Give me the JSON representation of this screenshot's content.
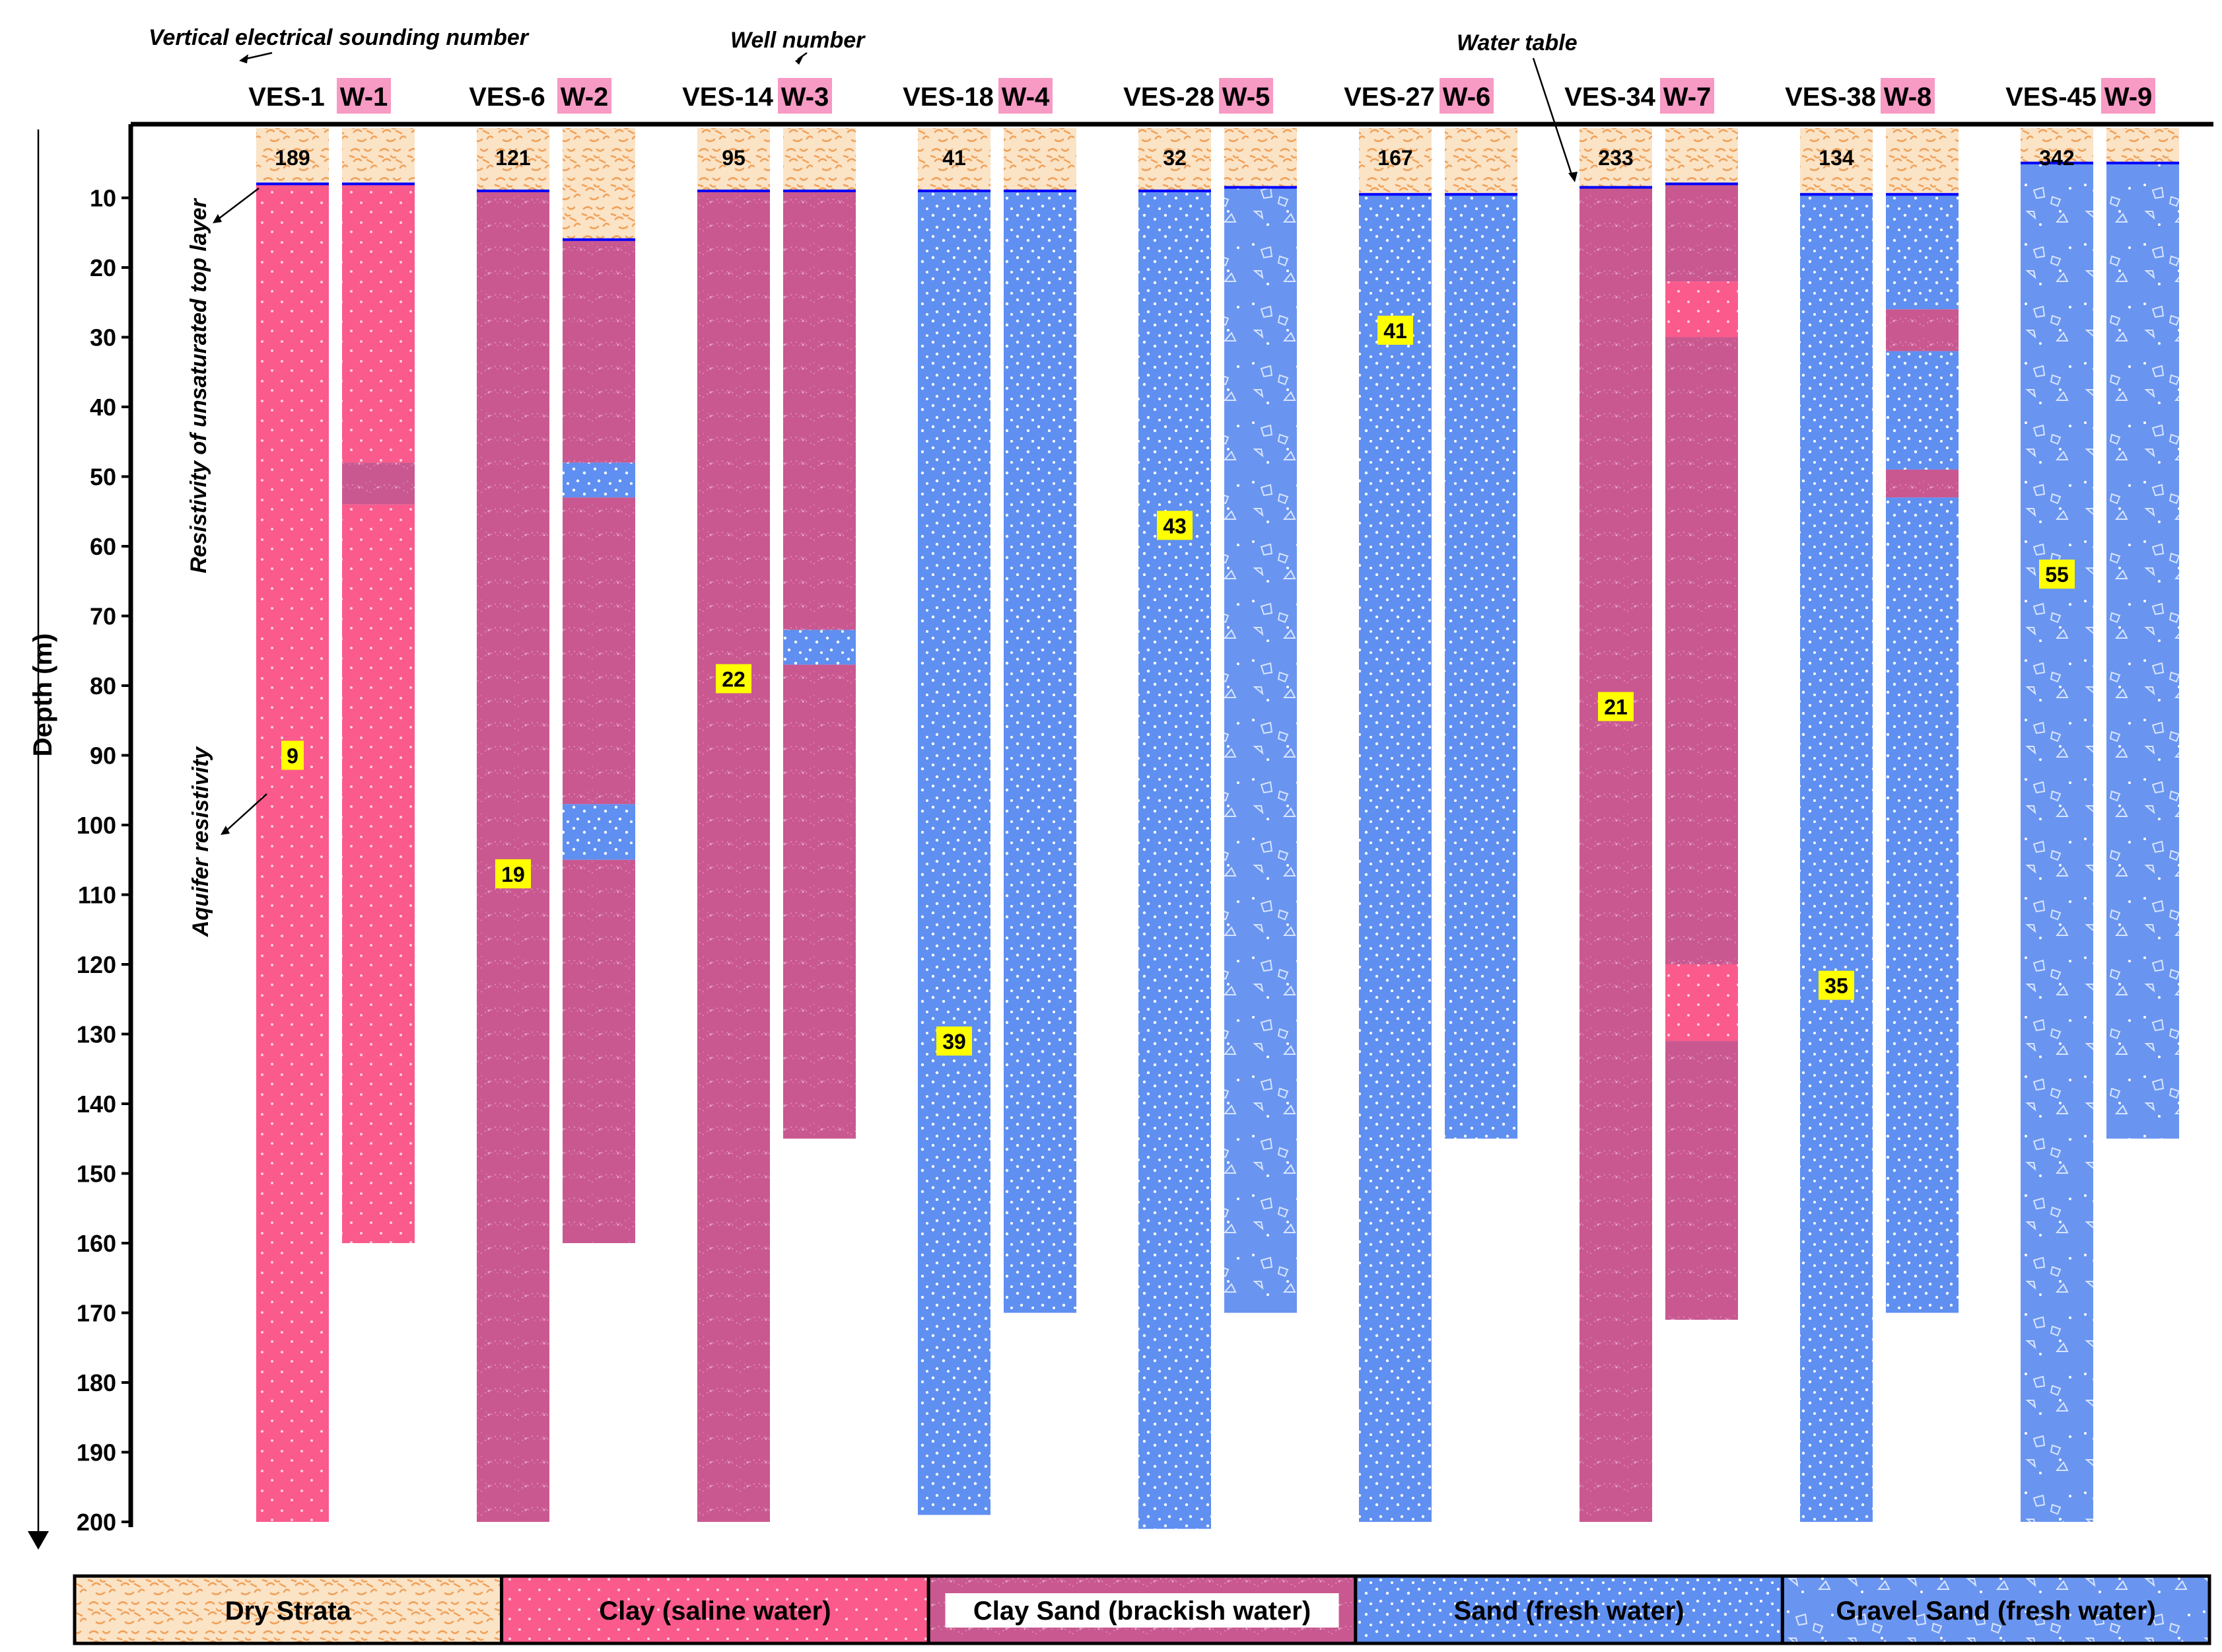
{
  "axis": {
    "ylabel": "Depth (m)",
    "ylim": [
      0,
      200
    ],
    "ticks": [
      10,
      20,
      30,
      40,
      50,
      60,
      70,
      80,
      90,
      100,
      110,
      120,
      130,
      140,
      150,
      160,
      170,
      180,
      190,
      200
    ]
  },
  "annotations": {
    "ves_number": "Vertical electrical sounding number",
    "well_number": "Well  number",
    "water_table": "Water table",
    "top_layer": "Resistivity of unsaturated top layer",
    "aquifer": "Aquifer resistivity"
  },
  "materials": {
    "dry": {
      "label": "Dry Strata",
      "color": "#fbe3c6"
    },
    "clay": {
      "label": "Clay (saline water)",
      "color": "#fb5a8c"
    },
    "claysand": {
      "label": "Clay Sand (brackish water)",
      "color": "#c95890"
    },
    "sand": {
      "label": "Sand (fresh water)",
      "color": "#5f8ff0"
    },
    "gravel": {
      "label": "Gravel Sand (fresh water)",
      "color": "#6995f0"
    }
  },
  "legend_order": [
    "dry",
    "clay",
    "claysand",
    "sand",
    "gravel"
  ],
  "colors": {
    "water_table": "#0000ff",
    "well_label_bg": "#f79ac4",
    "value_bg": "#ffff00"
  },
  "chart_data": {
    "type": "table",
    "pairs": [
      {
        "ves": {
          "label": "VES-1",
          "top": "189",
          "aquifer": "9",
          "aquifer_depth": 90,
          "water_table": 8,
          "bottom": 200,
          "layers": [
            {
              "m": "dry",
              "from": 0,
              "to": 8
            },
            {
              "m": "clay",
              "from": 8,
              "to": 200
            }
          ]
        },
        "well": {
          "label": "W-1",
          "water_table": 8,
          "bottom": 160,
          "layers": [
            {
              "m": "dry",
              "from": 0,
              "to": 8
            },
            {
              "m": "clay",
              "from": 8,
              "to": 48
            },
            {
              "m": "claysand",
              "from": 48,
              "to": 54
            },
            {
              "m": "clay",
              "from": 54,
              "to": 160
            }
          ]
        }
      },
      {
        "ves": {
          "label": "VES-6",
          "top": "121",
          "aquifer": "19",
          "aquifer_depth": 107,
          "water_table": 9,
          "bottom": 200,
          "layers": [
            {
              "m": "dry",
              "from": 0,
              "to": 9
            },
            {
              "m": "claysand",
              "from": 9,
              "to": 200
            }
          ]
        },
        "well": {
          "label": "W-2",
          "water_table": 16,
          "bottom": 160,
          "layers": [
            {
              "m": "dry",
              "from": 0,
              "to": 16
            },
            {
              "m": "claysand",
              "from": 16,
              "to": 48
            },
            {
              "m": "sand",
              "from": 48,
              "to": 53
            },
            {
              "m": "claysand",
              "from": 53,
              "to": 97
            },
            {
              "m": "sand",
              "from": 97,
              "to": 105
            },
            {
              "m": "claysand",
              "from": 105,
              "to": 160
            }
          ]
        }
      },
      {
        "ves": {
          "label": "VES-14",
          "top": "95",
          "aquifer": "22",
          "aquifer_depth": 79,
          "water_table": 9,
          "bottom": 200,
          "layers": [
            {
              "m": "dry",
              "from": 0,
              "to": 9
            },
            {
              "m": "claysand",
              "from": 9,
              "to": 200
            }
          ]
        },
        "well": {
          "label": "W-3",
          "water_table": 9,
          "bottom": 145,
          "layers": [
            {
              "m": "dry",
              "from": 0,
              "to": 9
            },
            {
              "m": "claysand",
              "from": 9,
              "to": 72
            },
            {
              "m": "sand",
              "from": 72,
              "to": 77
            },
            {
              "m": "claysand",
              "from": 77,
              "to": 145
            }
          ]
        }
      },
      {
        "ves": {
          "label": "VES-18",
          "top": "41",
          "aquifer": "39",
          "aquifer_depth": 131,
          "water_table": 9,
          "bottom": 199,
          "layers": [
            {
              "m": "dry",
              "from": 0,
              "to": 9
            },
            {
              "m": "sand",
              "from": 9,
              "to": 199
            }
          ]
        },
        "well": {
          "label": "W-4",
          "water_table": 9,
          "bottom": 170,
          "layers": [
            {
              "m": "dry",
              "from": 0,
              "to": 9
            },
            {
              "m": "sand",
              "from": 9,
              "to": 170
            }
          ]
        }
      },
      {
        "ves": {
          "label": "VES-28",
          "top": "32",
          "aquifer": "43",
          "aquifer_depth": 57,
          "water_table": 9,
          "bottom": 201,
          "layers": [
            {
              "m": "dry",
              "from": 0,
              "to": 9
            },
            {
              "m": "sand",
              "from": 9,
              "to": 201
            }
          ]
        },
        "well": {
          "label": "W-5",
          "water_table": 8.5,
          "bottom": 170,
          "layers": [
            {
              "m": "dry",
              "from": 0,
              "to": 8.5
            },
            {
              "m": "gravel",
              "from": 8.5,
              "to": 170
            }
          ]
        }
      },
      {
        "ves": {
          "label": "VES-27",
          "top": "167",
          "aquifer": "41",
          "aquifer_depth": 29,
          "water_table": 9.5,
          "bottom": 200,
          "layers": [
            {
              "m": "dry",
              "from": 0,
              "to": 9.5
            },
            {
              "m": "sand",
              "from": 9.5,
              "to": 200
            }
          ]
        },
        "well": {
          "label": "W-6",
          "water_table": 9.5,
          "bottom": 145,
          "layers": [
            {
              "m": "dry",
              "from": 0,
              "to": 9.5
            },
            {
              "m": "sand",
              "from": 9.5,
              "to": 145
            }
          ]
        }
      },
      {
        "ves": {
          "label": "VES-34",
          "top": "233",
          "aquifer": "21",
          "aquifer_depth": 83,
          "water_table": 8.5,
          "bottom": 200,
          "layers": [
            {
              "m": "dry",
              "from": 0,
              "to": 8.5
            },
            {
              "m": "claysand",
              "from": 8.5,
              "to": 200
            }
          ]
        },
        "well": {
          "label": "W-7",
          "water_table": 8,
          "bottom": 171,
          "layers": [
            {
              "m": "dry",
              "from": 0,
              "to": 8
            },
            {
              "m": "claysand",
              "from": 8,
              "to": 22
            },
            {
              "m": "clay",
              "from": 22,
              "to": 30
            },
            {
              "m": "claysand",
              "from": 30,
              "to": 120
            },
            {
              "m": "clay",
              "from": 120,
              "to": 131
            },
            {
              "m": "claysand",
              "from": 131,
              "to": 171
            }
          ]
        }
      },
      {
        "ves": {
          "label": "VES-38",
          "top": "134",
          "aquifer": "35",
          "aquifer_depth": 123,
          "water_table": 9.5,
          "bottom": 200,
          "layers": [
            {
              "m": "dry",
              "from": 0,
              "to": 9.5
            },
            {
              "m": "sand",
              "from": 9.5,
              "to": 200
            }
          ]
        },
        "well": {
          "label": "W-8",
          "water_table": 9.5,
          "bottom": 170,
          "layers": [
            {
              "m": "dry",
              "from": 0,
              "to": 9.5
            },
            {
              "m": "sand",
              "from": 9.5,
              "to": 26
            },
            {
              "m": "claysand",
              "from": 26,
              "to": 32
            },
            {
              "m": "sand",
              "from": 32,
              "to": 49
            },
            {
              "m": "claysand",
              "from": 49,
              "to": 53
            },
            {
              "m": "sand",
              "from": 53,
              "to": 170
            }
          ]
        }
      },
      {
        "ves": {
          "label": "VES-45",
          "top": "342",
          "aquifer": "55",
          "aquifer_depth": 64,
          "water_table": 5,
          "bottom": 200,
          "layers": [
            {
              "m": "dry",
              "from": 0,
              "to": 5
            },
            {
              "m": "gravel",
              "from": 5,
              "to": 200
            }
          ]
        },
        "well": {
          "label": "W-9",
          "water_table": 5,
          "bottom": 145,
          "layers": [
            {
              "m": "dry",
              "from": 0,
              "to": 5
            },
            {
              "m": "gravel",
              "from": 5,
              "to": 145
            }
          ]
        }
      }
    ]
  }
}
